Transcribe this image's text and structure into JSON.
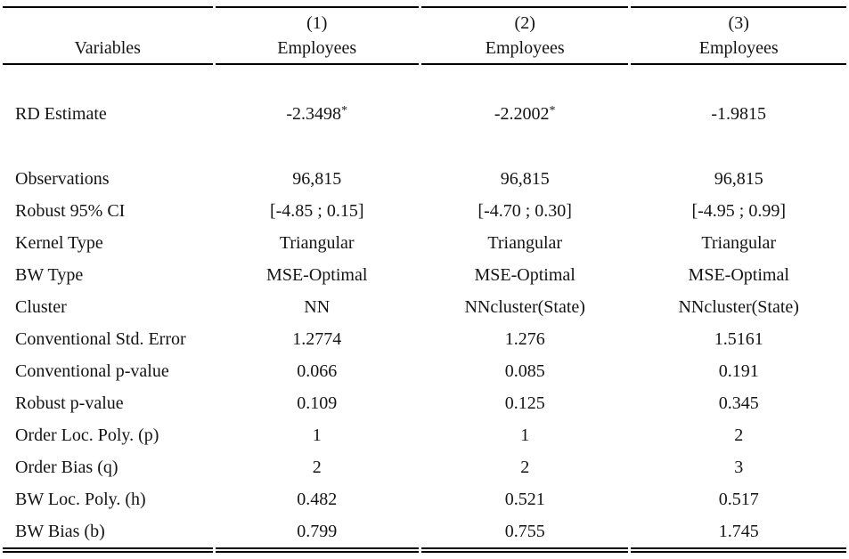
{
  "table": {
    "variables_header": "Variables",
    "columns": [
      {
        "number": "(1)",
        "dep_var": "Employees"
      },
      {
        "number": "(2)",
        "dep_var": "Employees"
      },
      {
        "number": "(3)",
        "dep_var": "Employees"
      }
    ],
    "rows": [
      {
        "label": "RD Estimate",
        "values": [
          "-2.3498*",
          "-2.2002*",
          "-1.9815"
        ]
      },
      {
        "label": "Observations",
        "values": [
          "96,815",
          "96,815",
          "96,815"
        ]
      },
      {
        "label": "Robust 95% CI",
        "values": [
          "[-4.85 ; 0.15]",
          "[-4.70 ; 0.30]",
          "[-4.95 ; 0.99]"
        ]
      },
      {
        "label": "Kernel Type",
        "values": [
          "Triangular",
          "Triangular",
          "Triangular"
        ]
      },
      {
        "label": "BW Type",
        "values": [
          "MSE-Optimal",
          "MSE-Optimal",
          "MSE-Optimal"
        ]
      },
      {
        "label": "Cluster",
        "values": [
          "NN",
          "NNcluster(State)",
          "NNcluster(State)"
        ]
      },
      {
        "label": "Conventional Std. Error",
        "values": [
          "1.2774",
          "1.276",
          "1.5161"
        ]
      },
      {
        "label": "Conventional p-value",
        "values": [
          "0.066",
          "0.085",
          "0.191"
        ]
      },
      {
        "label": "Robust p-value",
        "values": [
          "0.109",
          "0.125",
          "0.345"
        ]
      },
      {
        "label": "Order Loc. Poly. (p)",
        "values": [
          "1",
          "1",
          "2"
        ]
      },
      {
        "label": "Order Bias (q)",
        "values": [
          "2",
          "2",
          "3"
        ]
      },
      {
        "label": "BW Loc. Poly. (h)",
        "values": [
          "0.482",
          "0.521",
          "0.517"
        ]
      },
      {
        "label": "BW Bias (b)",
        "values": [
          "0.799",
          "0.755",
          "1.745"
        ]
      }
    ],
    "colors": {
      "text": "#141414",
      "rule": "#000000",
      "background": "#ffffff"
    }
  }
}
